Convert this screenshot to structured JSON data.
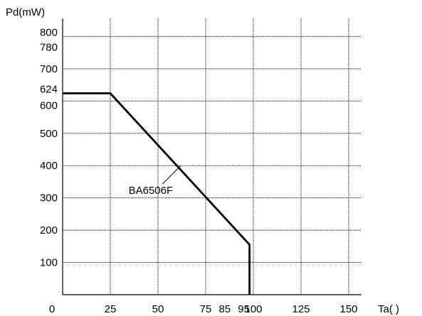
{
  "chart_data": {
    "type": "line",
    "title": "",
    "ylabel": "Pd(mW)",
    "xlabel": "Ta(   )",
    "xlim": [
      0,
      155
    ],
    "ylim": [
      0,
      825
    ],
    "grid": true,
    "x_ticks": [
      0,
      25,
      50,
      75,
      85,
      95,
      100,
      125,
      150
    ],
    "x_tick_labels": [
      "0",
      "25",
      "50",
      "75",
      "85",
      "95",
      "100",
      "125",
      "150"
    ],
    "x_gridlines": [
      25,
      50,
      75,
      100,
      125,
      150
    ],
    "y_ticks": [
      100,
      200,
      300,
      400,
      500,
      600,
      624,
      700,
      780,
      800
    ],
    "y_tick_labels": [
      "100",
      "200",
      "300",
      "400",
      "500",
      "600",
      "624",
      "700",
      "780",
      "800"
    ],
    "y_gridlines": [
      100,
      200,
      300,
      400,
      500,
      600,
      700,
      800
    ],
    "series": [
      {
        "name": "BA6506F",
        "x": [
          0,
          25,
          98,
          98
        ],
        "y": [
          624,
          624,
          155,
          0
        ]
      }
    ],
    "annotations": [
      {
        "text": "BA6506F",
        "x": 62,
        "y": 400
      }
    ]
  }
}
